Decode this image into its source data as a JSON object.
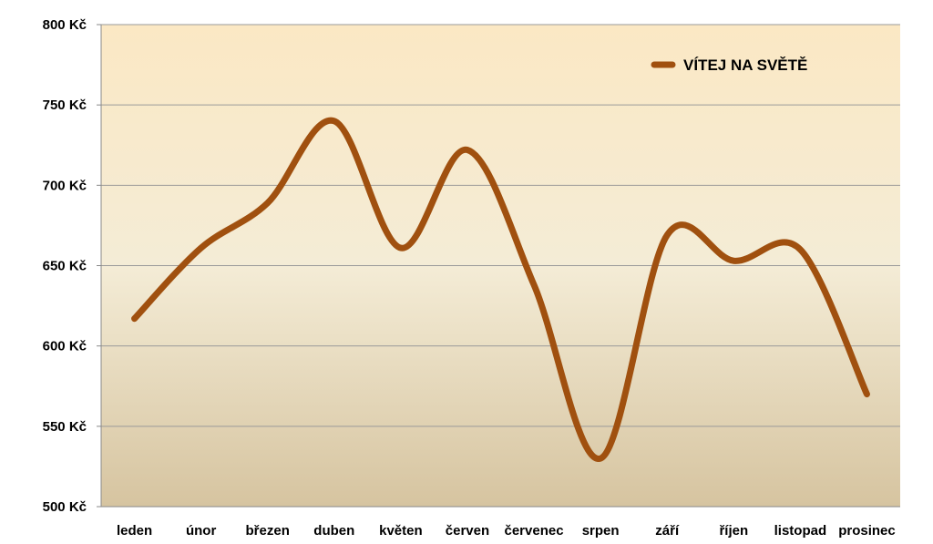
{
  "chart_data": {
    "type": "line",
    "title": "",
    "xlabel": "",
    "ylabel": "",
    "categories": [
      "leden",
      "únor",
      "březen",
      "duben",
      "květen",
      "červen",
      "červenec",
      "srpen",
      "září",
      "říjen",
      "listopad",
      "prosinec"
    ],
    "series": [
      {
        "name": "VÍTEJ NA SVĚTĚ",
        "values": [
          617,
          661,
          689,
          740,
          661,
          722,
          638,
          530,
          669,
          653,
          660,
          570
        ],
        "color": "#a0500f",
        "smooth": true
      }
    ],
    "ylim": [
      500,
      800
    ],
    "y_ticks": [
      500,
      550,
      600,
      650,
      700,
      750,
      800
    ],
    "y_tick_labels": [
      "500 Kč",
      "550 Kč",
      "600 Kč",
      "650 Kč",
      "700 Kč",
      "750 Kč",
      "800 Kč"
    ],
    "grid": true,
    "legend": "top-right",
    "background_gradient": [
      "#fbe8c4",
      "#f4ecd6",
      "#d6c4a0"
    ]
  }
}
